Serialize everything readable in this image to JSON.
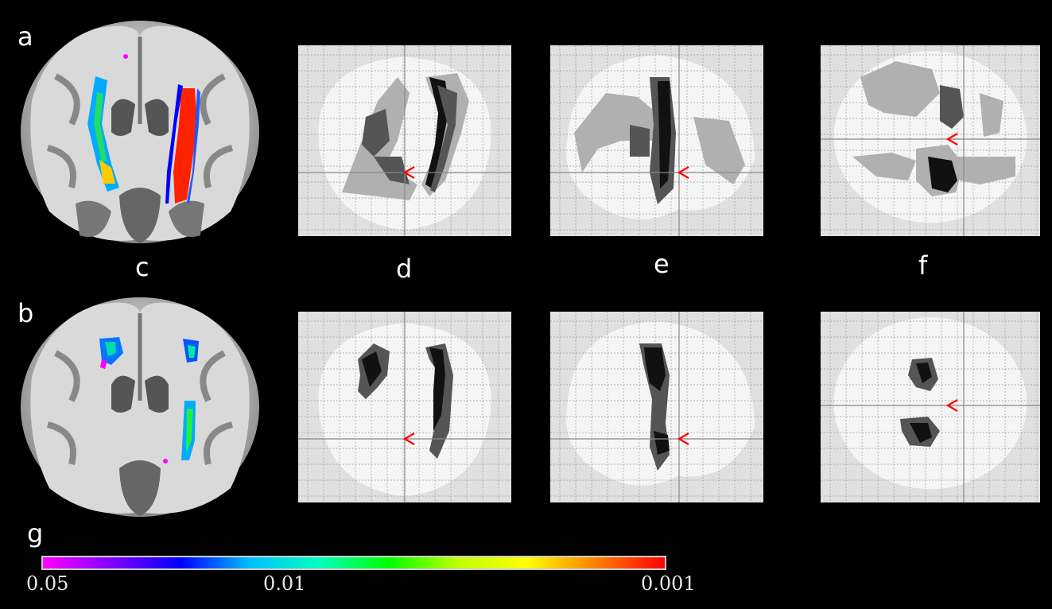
{
  "panel_labels": {
    "a": "a",
    "b": "b",
    "c": "c",
    "d": "d",
    "e": "e",
    "f": "f",
    "g": "g"
  },
  "colorbar": {
    "ticks": [
      "0.05",
      "0.01",
      "0.001"
    ],
    "colors": [
      "#ff00ff",
      "#8000ff",
      "#0000ff",
      "#00c0ff",
      "#00ffc0",
      "#00ff00",
      "#c0ff00",
      "#ffff00",
      "#ff8000",
      "#ff0000"
    ]
  },
  "colors": {
    "background": "#000000",
    "glass_brain_fill": "#f5f5f5",
    "glass_brain_grid": "#9a9a9a",
    "cluster_dark": "#111111",
    "cluster_mid": "#555555",
    "cluster_light": "#b0b0b0",
    "crosshair_marker": "#ff0000"
  },
  "icons": [
    "red-chevron-marker"
  ]
}
